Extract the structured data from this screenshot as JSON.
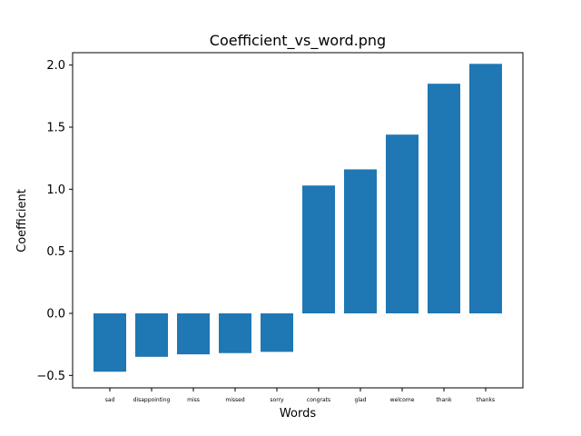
{
  "chart_data": {
    "type": "bar",
    "title": "Coefficient_vs_word.png",
    "xlabel": "Words",
    "ylabel": "Coefficient",
    "categories": [
      "sad",
      "disappointing",
      "miss",
      "missed",
      "sorry",
      "congrats",
      "glad",
      "welcome",
      "thank",
      "thanks"
    ],
    "values": [
      -0.47,
      -0.35,
      -0.33,
      -0.32,
      -0.31,
      1.03,
      1.16,
      1.44,
      1.85,
      2.01
    ],
    "ylim": [
      -0.6,
      2.1
    ],
    "yticks": [
      -0.5,
      0.0,
      0.5,
      1.0,
      1.5,
      2.0
    ],
    "ytick_labels": [
      "−0.5",
      "0.0",
      "0.5",
      "1.0",
      "1.5",
      "2.0"
    ],
    "bar_color": "#1f77b4",
    "grid": false,
    "legend": false
  }
}
